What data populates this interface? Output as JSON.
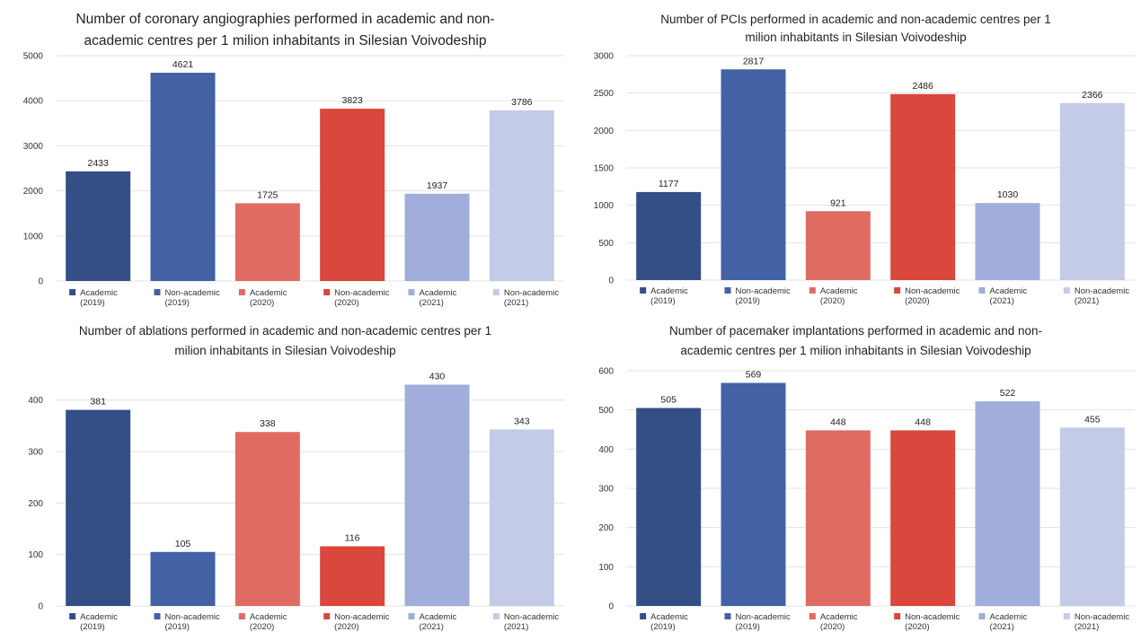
{
  "colors": [
    "#344f86",
    "#4262a5",
    "#e06b62",
    "#d9473d",
    "#a1adda",
    "#c4cbe6"
  ],
  "legend": [
    [
      "Academic",
      "(2019)"
    ],
    [
      "Non-academic",
      "(2019)"
    ],
    [
      "Academic",
      "(2020)"
    ],
    [
      "Non-academic",
      "(2020)"
    ],
    [
      "Academic",
      "(2021)"
    ],
    [
      "Non-academic",
      "(2021)"
    ]
  ],
  "chart_data": [
    {
      "type": "bar",
      "title": [
        "Number of coronary angiographies performed in academic and non-",
        "academic centres per 1 milion inhabitants in Silesian Voivodeship"
      ],
      "categories": [
        "Academic (2019)",
        "Non-academic (2019)",
        "Academic (2020)",
        "Non-academic (2020)",
        "Academic (2021)",
        "Non-academic (2021)"
      ],
      "values": [
        2433,
        4621,
        1725,
        3823,
        1937,
        3786
      ],
      "ylim": [
        0,
        5000
      ],
      "yticks": [
        0,
        1000,
        2000,
        3000,
        4000,
        5000
      ],
      "grid": true,
      "legend_position": "bottom"
    },
    {
      "type": "bar",
      "title": [
        "Number of PCIs performed in academic and non-academic centres per 1",
        "milion inhabitants in Silesian Voivodeship"
      ],
      "categories": [
        "Academic (2019)",
        "Non-academic (2019)",
        "Academic (2020)",
        "Non-academic (2020)",
        "Academic (2021)",
        "Non-academic (2021)"
      ],
      "values": [
        1177,
        2817,
        921,
        2486,
        1030,
        2366
      ],
      "ylim": [
        0,
        3000
      ],
      "yticks": [
        0,
        500,
        1000,
        1500,
        2000,
        2500,
        3000
      ],
      "grid": true,
      "legend_position": "bottom"
    },
    {
      "type": "bar",
      "title": [
        "Number of ablations performed in academic and non-academic centres per 1",
        "milion inhabitants in Silesian Voivodeship"
      ],
      "categories": [
        "Academic (2019)",
        "Non-academic (2019)",
        "Academic (2020)",
        "Non-academic (2020)",
        "Academic (2021)",
        "Non-academic (2021)"
      ],
      "values": [
        381,
        105,
        338,
        116,
        430,
        343
      ],
      "ylim": [
        0,
        450
      ],
      "yticks": [
        0,
        100,
        200,
        300,
        400
      ],
      "grid": true,
      "legend_position": "bottom"
    },
    {
      "type": "bar",
      "title": [
        "Number of pacemaker implantations performed in academic and non-",
        "academic centres per 1 milion inhabitants in Silesian Voivodeship"
      ],
      "categories": [
        "Academic (2019)",
        "Non-academic (2019)",
        "Academic (2020)",
        "Non-academic (2020)",
        "Academic (2021)",
        "Non-academic (2021)"
      ],
      "values": [
        505,
        569,
        448,
        448,
        522,
        455
      ],
      "ylim": [
        0,
        600
      ],
      "yticks": [
        0,
        100,
        200,
        300,
        400,
        500,
        600
      ],
      "grid": true,
      "legend_position": "bottom"
    }
  ]
}
